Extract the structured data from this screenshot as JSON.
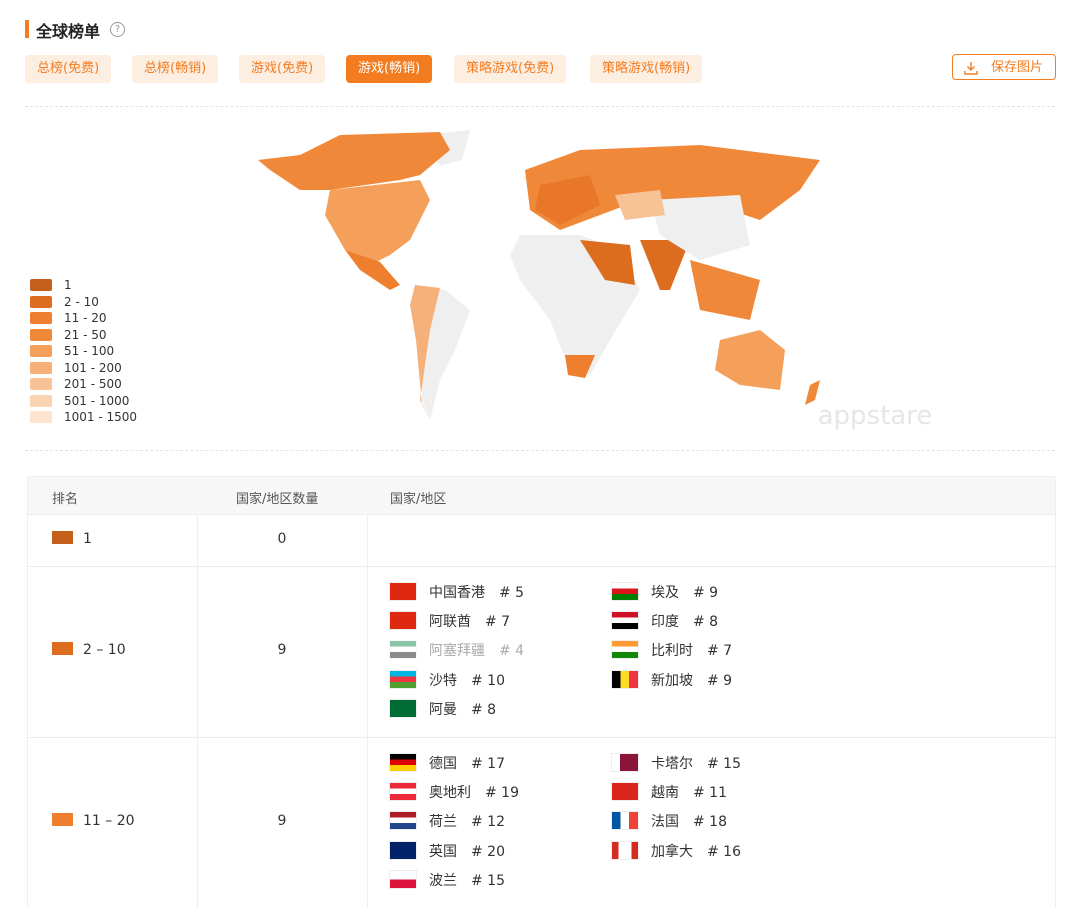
{
  "header": {
    "title": "全球榜单",
    "help": "?"
  },
  "tabs": [
    "总榜(免费)",
    "总榜(畅销)",
    "游戏(免费)",
    "游戏(畅销)",
    "策略游戏(免费)",
    "策略游戏(畅销)"
  ],
  "active_tab": 3,
  "save_button": "保存图片",
  "legend": [
    "1",
    "2 - 10",
    "11 - 20",
    "21 - 50",
    "51 - 100",
    "101 - 200",
    "201 - 500",
    "501 - 1000",
    "1001 - 1500"
  ],
  "watermark": "appstare",
  "table": {
    "headers": [
      "排名",
      "国家/地区数量",
      "国家/地区"
    ],
    "rows": [
      {
        "rank": "1",
        "count": 0,
        "countries": []
      },
      {
        "rank": "2 – 10",
        "count": 9,
        "countries": [
          {
            "name": "中国香港",
            "rank": "# 5"
          },
          {
            "name": "阿联酋",
            "rank": "# 7"
          },
          {
            "name": "阿塞拜疆",
            "rank": "# 4",
            "dimmed": true
          },
          {
            "name": "沙特",
            "rank": "# 10"
          },
          {
            "name": "阿曼",
            "rank": "# 8"
          },
          {
            "name": "埃及",
            "rank": "# 9"
          },
          {
            "name": "印度",
            "rank": "# 8"
          },
          {
            "name": "比利时",
            "rank": "# 7"
          },
          {
            "name": "新加坡",
            "rank": "# 9"
          }
        ]
      },
      {
        "rank": "11 – 20",
        "count": 9,
        "countries": [
          {
            "name": "德国",
            "rank": "# 17"
          },
          {
            "name": "奥地利",
            "rank": "# 19"
          },
          {
            "name": "荷兰",
            "rank": "# 12"
          },
          {
            "name": "英国",
            "rank": "# 20"
          },
          {
            "name": "波兰",
            "rank": "# 15"
          },
          {
            "name": "卡塔尔",
            "rank": "# 15"
          },
          {
            "name": "越南",
            "rank": "# 11"
          },
          {
            "name": "法国",
            "rank": "# 18"
          },
          {
            "name": "加拿大",
            "rank": "# 16"
          }
        ]
      }
    ]
  }
}
